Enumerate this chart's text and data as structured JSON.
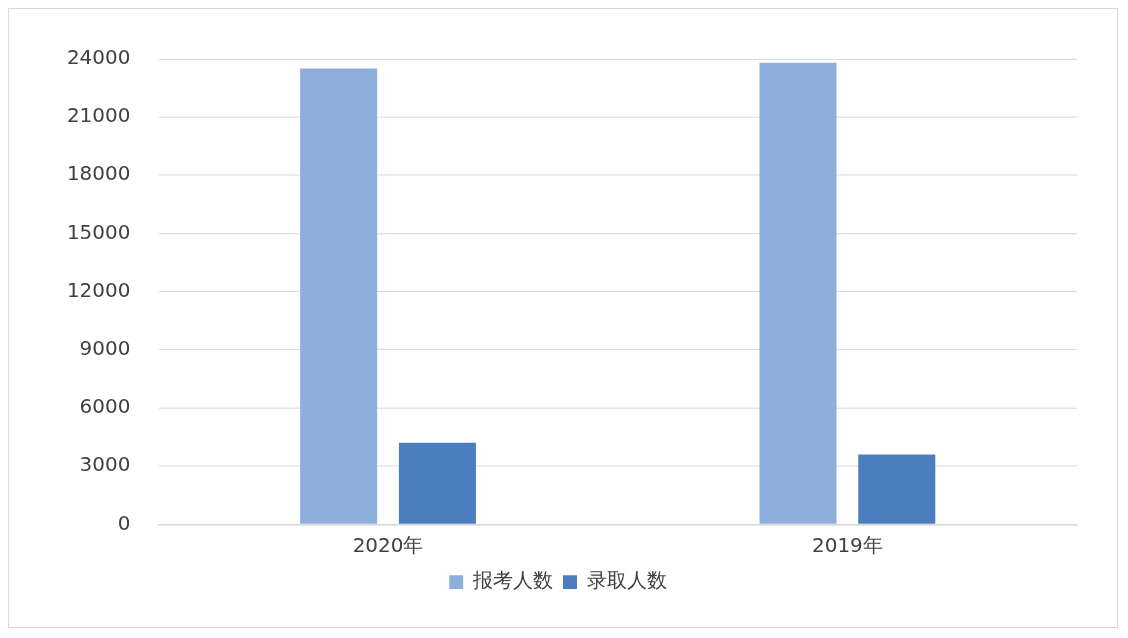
{
  "chart_data": {
    "type": "bar",
    "categories": [
      "2020年",
      "2019年"
    ],
    "series": [
      {
        "name": "报考人数",
        "color": "#8eaedb",
        "values": [
          23500,
          23800
        ]
      },
      {
        "name": "录取人数",
        "color": "#4a7ebf",
        "values": [
          4200,
          3600
        ]
      }
    ],
    "ylim": [
      0,
      24000
    ],
    "yticks": [
      0,
      3000,
      6000,
      9000,
      12000,
      15000,
      18000,
      21000,
      24000
    ],
    "grid": "y",
    "legend": "bottom"
  }
}
